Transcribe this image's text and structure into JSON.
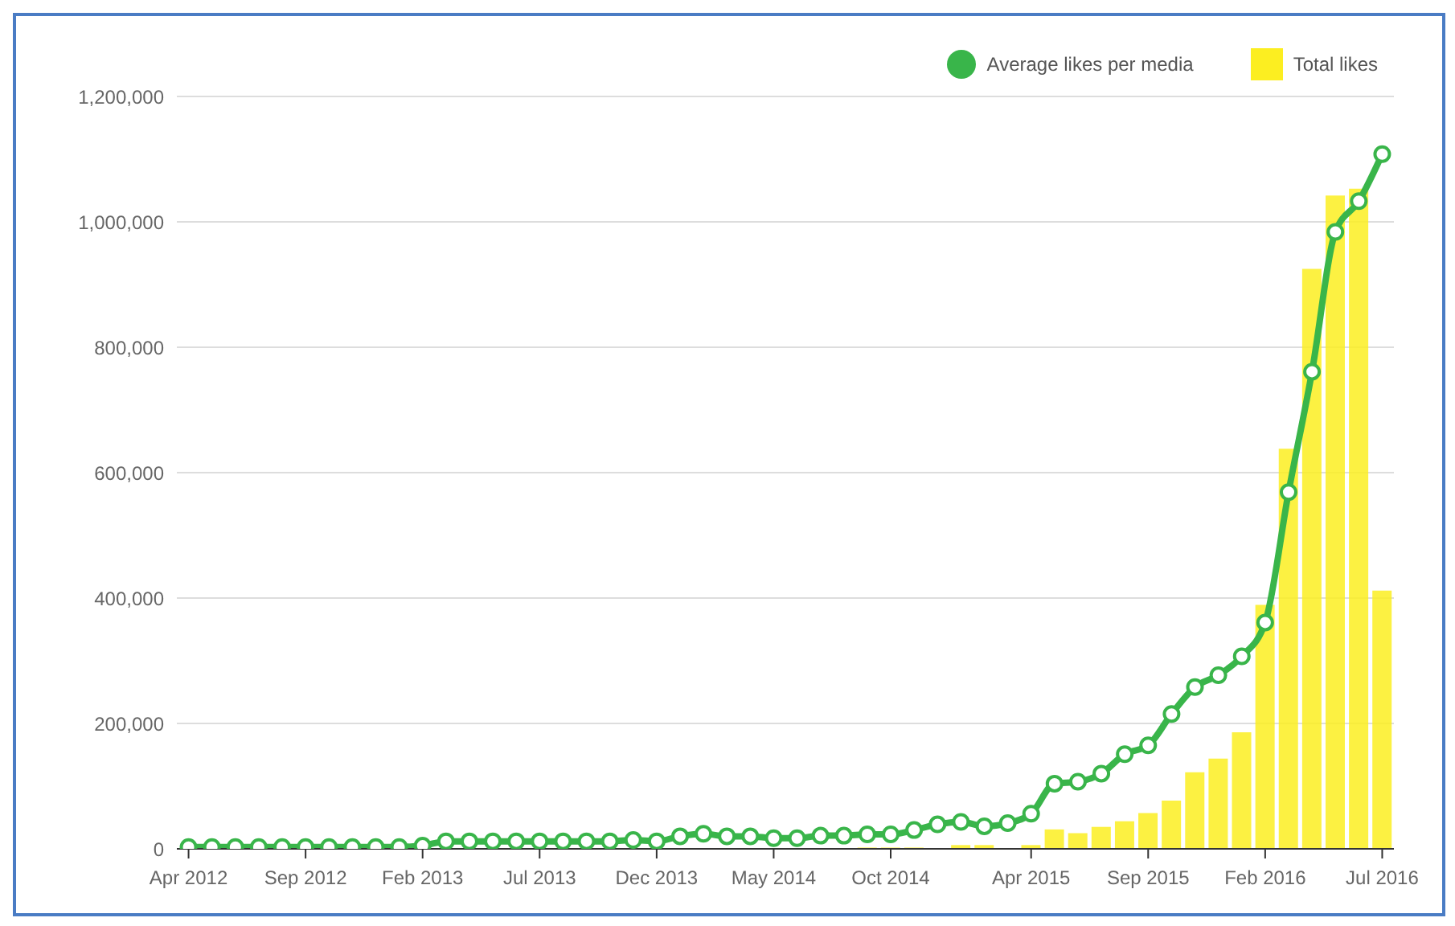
{
  "chart_data": {
    "type": "bar",
    "categories": [
      "Apr 2012",
      null,
      null,
      null,
      null,
      "Sep 2012",
      null,
      null,
      null,
      null,
      "Feb 2013",
      null,
      null,
      null,
      null,
      "Jul 2013",
      null,
      null,
      null,
      null,
      "Dec 2013",
      null,
      null,
      null,
      null,
      "May 2014",
      null,
      null,
      null,
      null,
      "Oct 2014",
      null,
      null,
      null,
      null,
      null,
      "Apr 2015",
      null,
      null,
      null,
      null,
      "Sep 2015",
      null,
      null,
      null,
      null,
      "Feb 2016",
      null,
      null,
      null,
      null,
      "Jul 2016"
    ],
    "series": [
      {
        "name": "Total likes",
        "color": "#fcee21",
        "values": [
          0,
          0,
          0,
          0,
          0,
          0,
          0,
          0,
          0,
          0,
          1000,
          1000,
          1000,
          null,
          1000,
          1000,
          1000,
          null,
          1000,
          1000,
          1000,
          1000,
          1000,
          1000,
          1000,
          1000,
          1000,
          1000,
          null,
          2000,
          2000,
          2000,
          0,
          6000,
          6000,
          null,
          6000,
          31000,
          25000,
          35000,
          44000,
          57000,
          77000,
          122000,
          144000,
          186000,
          389000,
          638000,
          925000,
          1042000,
          1053000,
          412000
        ]
      },
      {
        "name": "Average likes per media",
        "type": "line",
        "color": "#39b54a",
        "values": [
          3000,
          3000,
          3000,
          3000,
          3000,
          3000,
          3000,
          3000,
          3000,
          3000,
          5000,
          12000,
          12000,
          12000,
          12000,
          12000,
          12000,
          12000,
          12000,
          14000,
          12000,
          20000,
          24000,
          20000,
          20000,
          17000,
          17000,
          21000,
          21000,
          23000,
          23000,
          30000,
          39000,
          43000,
          36000,
          41000,
          56000,
          104000,
          107000,
          120000,
          151000,
          165000,
          215000,
          258000,
          277000,
          307000,
          361000,
          569000,
          761000,
          984000,
          1033000,
          1108000
        ]
      }
    ],
    "ylim": [
      0,
      1200000
    ],
    "yticks": [
      0,
      {
        "value": 200000,
        "label": "200,000"
      },
      {
        "value": 400000,
        "label": "400,000"
      },
      {
        "value": 600000,
        "label": "600,000"
      },
      {
        "value": 800000,
        "label": "800,000"
      },
      {
        "value": 1000000,
        "label": "1,000,000"
      },
      {
        "value": 1200000,
        "label": "1,200,000"
      }
    ],
    "grid": "y",
    "legend": "top right",
    "marker": "circle",
    "line_style": "solid"
  }
}
